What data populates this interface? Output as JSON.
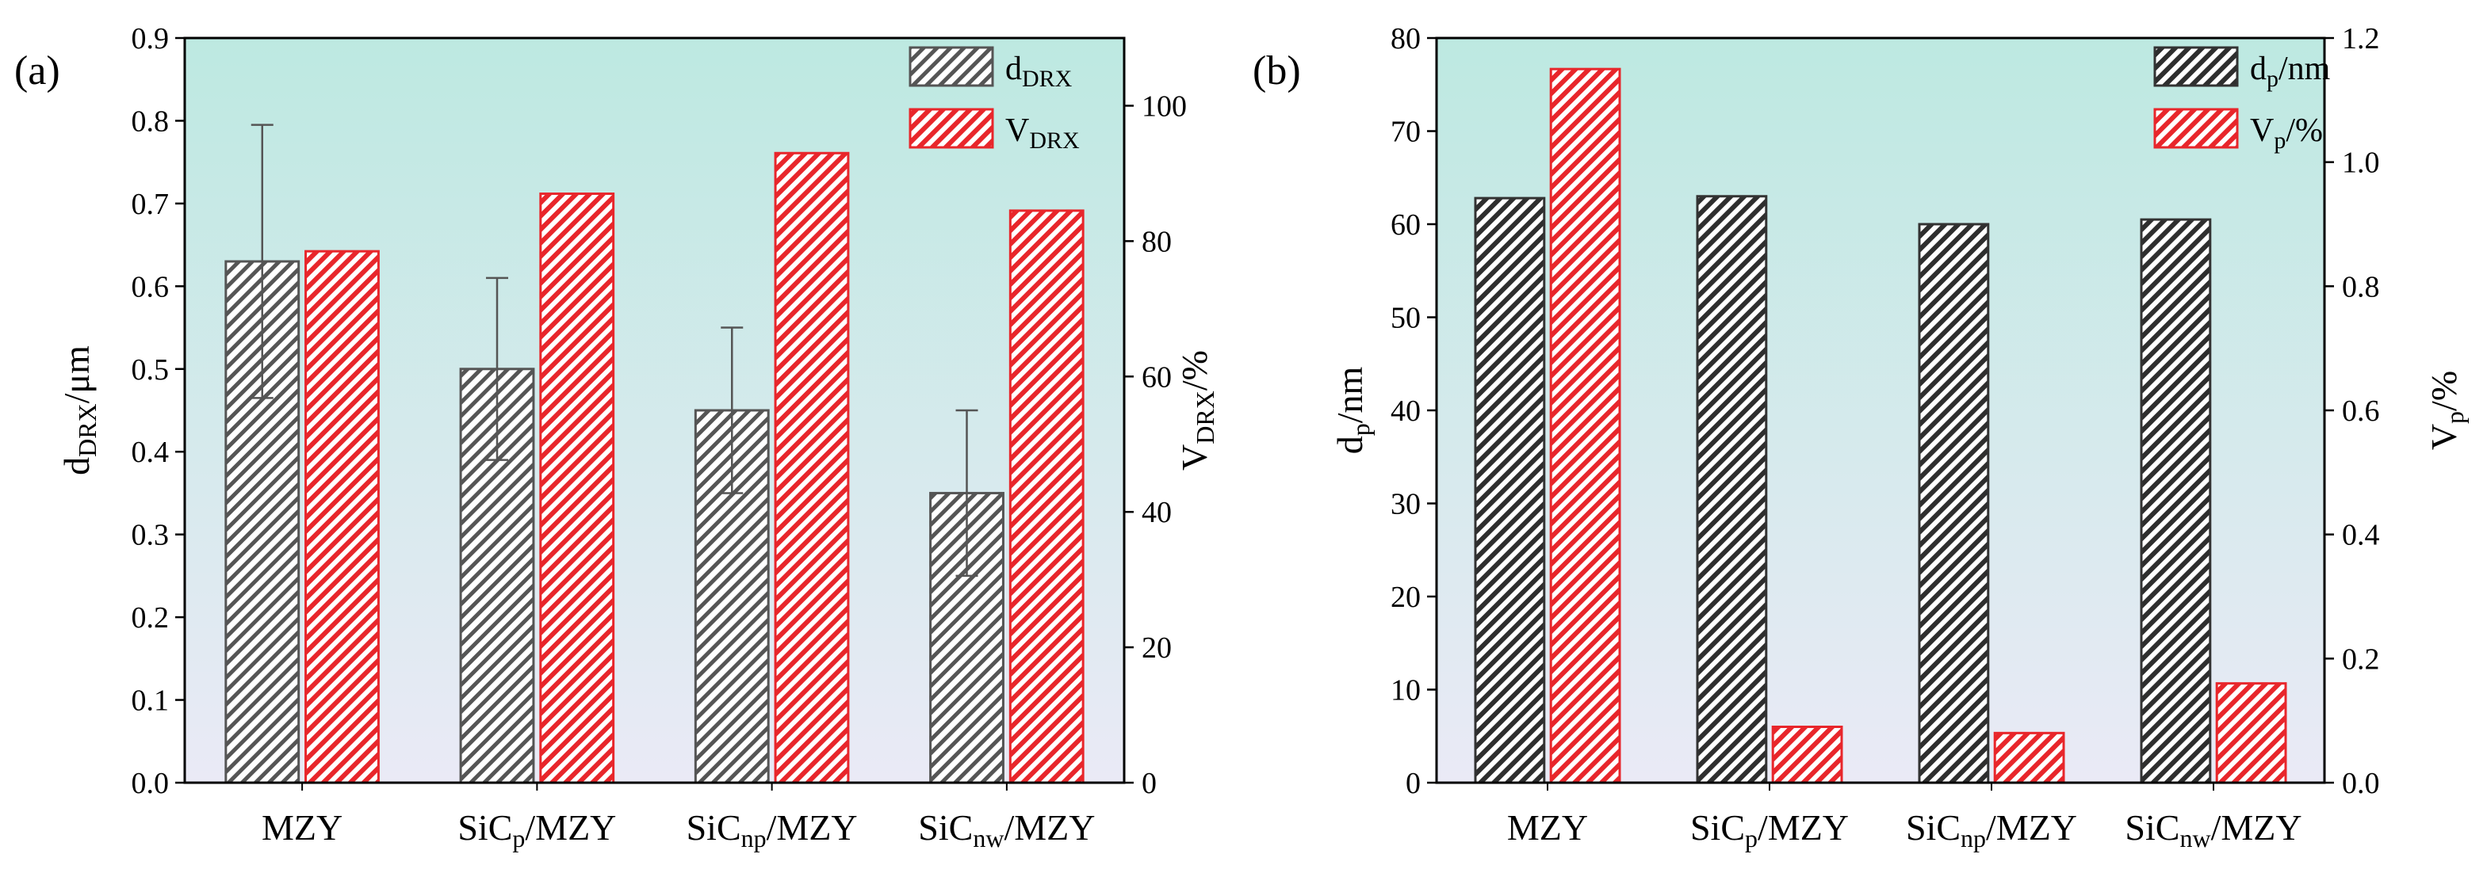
{
  "chart_data": [
    {
      "type": "bar",
      "panel_label": "(a)",
      "categories": [
        {
          "base": "MZY",
          "sub": "",
          "suffix": ""
        },
        {
          "base": "SiC",
          "sub": "p",
          "suffix": "/MZY"
        },
        {
          "base": "SiC",
          "sub": "np",
          "suffix": "/MZY"
        },
        {
          "base": "SiC",
          "sub": "nw",
          "suffix": "/MZY"
        }
      ],
      "series": [
        {
          "name": {
            "base": "d",
            "sub": "DRX",
            "suffix": ""
          },
          "axis": "left",
          "values": [
            0.63,
            0.5,
            0.45,
            0.35
          ],
          "error": [
            [
              0.465,
              0.795
            ],
            [
              0.39,
              0.61
            ],
            [
              0.35,
              0.55
            ],
            [
              0.25,
              0.45
            ]
          ],
          "color": "#555555",
          "pattern": "hatch-dark"
        },
        {
          "name": {
            "base": "V",
            "sub": "DRX",
            "suffix": ""
          },
          "axis": "right",
          "values": [
            78.5,
            87,
            93,
            84.5
          ],
          "color": "#e8262b",
          "pattern": "hatch-red"
        }
      ],
      "ylabel_left": {
        "base": "d",
        "sub": "DRX",
        "suffix": "/μm"
      },
      "ylabel_right": {
        "base": "V",
        "sub": "DRX",
        "suffix": "/%"
      },
      "ylim_left": [
        0,
        0.9
      ],
      "yticks_left": [
        "0.0",
        "0.1",
        "0.2",
        "0.3",
        "0.4",
        "0.5",
        "0.6",
        "0.7",
        "0.8",
        "0.9"
      ],
      "ylim_right": [
        0,
        110
      ],
      "yticks_right": [
        "0",
        "20",
        "40",
        "60",
        "80",
        "100"
      ],
      "legend_position": "top-right",
      "grid": false
    },
    {
      "type": "bar",
      "panel_label": "(b)",
      "categories": [
        {
          "base": "MZY",
          "sub": "",
          "suffix": ""
        },
        {
          "base": "SiC",
          "sub": "p",
          "suffix": "/MZY"
        },
        {
          "base": "SiC",
          "sub": "np",
          "suffix": "/MZY"
        },
        {
          "base": "SiC",
          "sub": "nw",
          "suffix": "/MZY"
        }
      ],
      "series": [
        {
          "name": {
            "base": "d",
            "sub": "p",
            "suffix": "/nm"
          },
          "axis": "left",
          "values": [
            62.8,
            63.0,
            60.0,
            60.5
          ],
          "color": "#333333",
          "pattern": "hatch-darker"
        },
        {
          "name": {
            "base": "V",
            "sub": "p",
            "suffix": "/%"
          },
          "axis": "right",
          "values": [
            1.15,
            0.09,
            0.08,
            0.16
          ],
          "color": "#e8262b",
          "pattern": "hatch-red"
        }
      ],
      "ylabel_left": {
        "base": "d",
        "sub": "p",
        "suffix": "/nm"
      },
      "ylabel_right": {
        "base": "V",
        "sub": "p",
        "suffix": "/%"
      },
      "ylim_left": [
        0,
        80
      ],
      "yticks_left": [
        "0",
        "10",
        "20",
        "30",
        "40",
        "50",
        "60",
        "70",
        "80"
      ],
      "ylim_right": [
        0,
        1.2
      ],
      "yticks_right": [
        "0.0",
        "0.2",
        "0.4",
        "0.6",
        "0.8",
        "1.0",
        "1.2"
      ],
      "legend_position": "top-right",
      "grid": false
    }
  ]
}
